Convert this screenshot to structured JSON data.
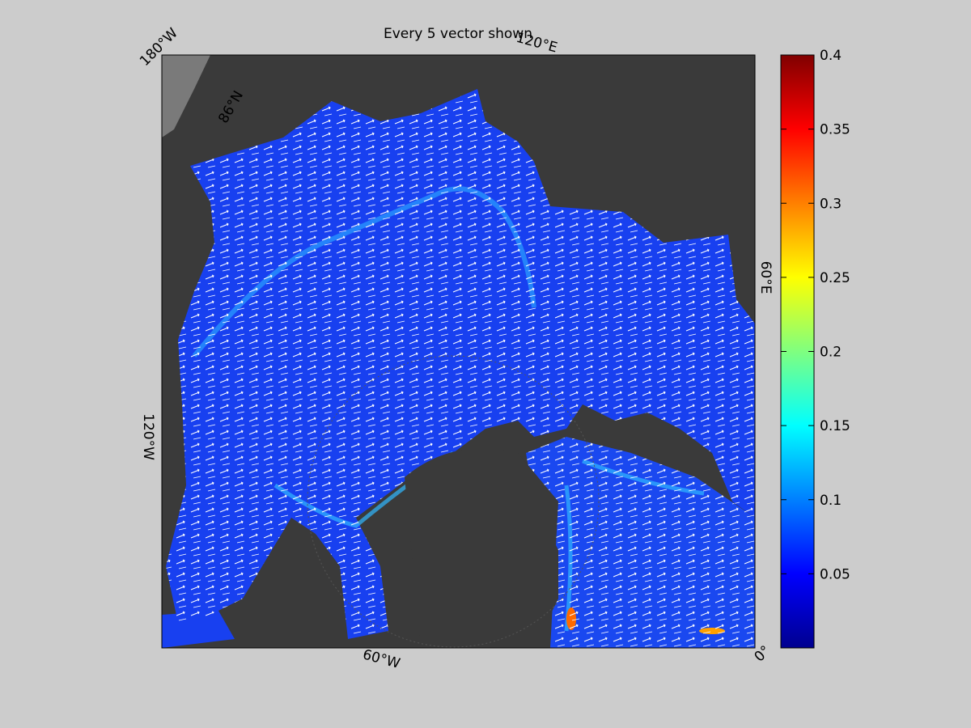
{
  "title": "Every 5 vector shown",
  "map_labels": [
    "180°W",
    "120°E",
    "60°E",
    "0°",
    "60°W",
    "120°W",
    "86°N"
  ],
  "colorbar": {
    "colormap": "jet",
    "range": [
      0,
      0.4
    ],
    "ticks": [
      0.05,
      0.1,
      0.15,
      0.2,
      0.25,
      0.3,
      0.35,
      0.4
    ]
  }
}
